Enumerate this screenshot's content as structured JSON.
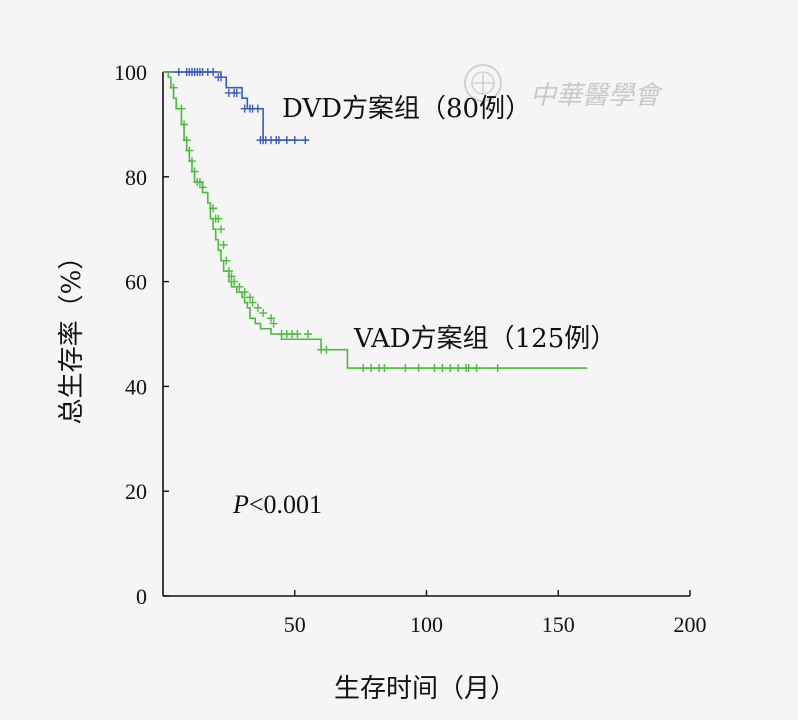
{
  "watermark": "中華醫學會",
  "chart_data": {
    "type": "line",
    "subtype": "kaplan-meier",
    "title": "",
    "xlabel": "生存时间（月）",
    "ylabel": "总生存率（%）",
    "xlim": [
      0,
      200
    ],
    "ylim": [
      0,
      100
    ],
    "xticks": [
      50,
      100,
      150,
      200
    ],
    "yticks": [
      0,
      20,
      40,
      60,
      80,
      100
    ],
    "grid": false,
    "annotation": {
      "italic": "P",
      "rest": "<0.001"
    },
    "series": [
      {
        "name": "DVD方案组（80例）",
        "color": "#3a5bbd",
        "steps": [
          [
            0,
            100
          ],
          [
            20,
            100
          ],
          [
            22,
            99
          ],
          [
            24,
            97
          ],
          [
            30,
            95
          ],
          [
            32,
            93
          ],
          [
            38,
            87
          ],
          [
            55,
            87
          ]
        ],
        "censored": [
          [
            6,
            100
          ],
          [
            9,
            100
          ],
          [
            10,
            100
          ],
          [
            11,
            100
          ],
          [
            12,
            100
          ],
          [
            13,
            100
          ],
          [
            14,
            100
          ],
          [
            15,
            100
          ],
          [
            17,
            100
          ],
          [
            19,
            100
          ],
          [
            21,
            99
          ],
          [
            22,
            99
          ],
          [
            25,
            96
          ],
          [
            27,
            96
          ],
          [
            28,
            96
          ],
          [
            31,
            93
          ],
          [
            33,
            93
          ],
          [
            34,
            93
          ],
          [
            36,
            93
          ],
          [
            37,
            87
          ],
          [
            38,
            87
          ],
          [
            39,
            87
          ],
          [
            41,
            87
          ],
          [
            43,
            87
          ],
          [
            44,
            87
          ],
          [
            47,
            87
          ],
          [
            50,
            87
          ],
          [
            54,
            87
          ]
        ]
      },
      {
        "name": "VAD方案组（125例）",
        "color": "#4cbb3c",
        "steps": [
          [
            0,
            100
          ],
          [
            2,
            99
          ],
          [
            3,
            97
          ],
          [
            4,
            95
          ],
          [
            5,
            93
          ],
          [
            7,
            90
          ],
          [
            8,
            87
          ],
          [
            9,
            85
          ],
          [
            10,
            83
          ],
          [
            11,
            81
          ],
          [
            12,
            79
          ],
          [
            15,
            77
          ],
          [
            17,
            75
          ],
          [
            18,
            72
          ],
          [
            19,
            70
          ],
          [
            20,
            68
          ],
          [
            21,
            66
          ],
          [
            22,
            64
          ],
          [
            23,
            62
          ],
          [
            25,
            60
          ],
          [
            26,
            59
          ],
          [
            28,
            58
          ],
          [
            30,
            57
          ],
          [
            31,
            56
          ],
          [
            32,
            55
          ],
          [
            33,
            53
          ],
          [
            35,
            52
          ],
          [
            37,
            51
          ],
          [
            41,
            50
          ],
          [
            45,
            49
          ],
          [
            60,
            47
          ],
          [
            70,
            43.5
          ],
          [
            161,
            43.5
          ]
        ],
        "censored": [
          [
            4,
            97
          ],
          [
            7,
            93
          ],
          [
            8,
            90
          ],
          [
            9,
            87
          ],
          [
            10,
            85
          ],
          [
            11,
            83
          ],
          [
            12,
            81
          ],
          [
            13,
            79
          ],
          [
            14,
            79
          ],
          [
            15,
            78
          ],
          [
            19,
            74
          ],
          [
            20,
            72
          ],
          [
            21,
            72
          ],
          [
            22,
            70
          ],
          [
            23,
            67
          ],
          [
            24,
            64
          ],
          [
            25,
            62
          ],
          [
            26,
            61
          ],
          [
            27,
            60
          ],
          [
            29,
            59
          ],
          [
            31,
            58
          ],
          [
            33,
            57
          ],
          [
            34,
            56
          ],
          [
            36,
            55
          ],
          [
            38,
            54
          ],
          [
            41,
            53
          ],
          [
            42,
            52
          ],
          [
            45,
            50
          ],
          [
            47,
            50
          ],
          [
            49,
            50
          ],
          [
            51,
            50
          ],
          [
            55,
            50
          ],
          [
            60,
            47
          ],
          [
            62,
            47
          ],
          [
            76,
            43.5
          ],
          [
            79,
            43.5
          ],
          [
            82,
            43.5
          ],
          [
            84,
            43.5
          ],
          [
            92,
            43.5
          ],
          [
            97,
            43.5
          ],
          [
            103,
            43.5
          ],
          [
            106,
            43.5
          ],
          [
            109,
            43.5
          ],
          [
            112,
            43.5
          ],
          [
            115,
            43.5
          ],
          [
            116,
            43.5
          ],
          [
            119,
            43.5
          ],
          [
            127,
            43.5
          ]
        ]
      }
    ]
  }
}
